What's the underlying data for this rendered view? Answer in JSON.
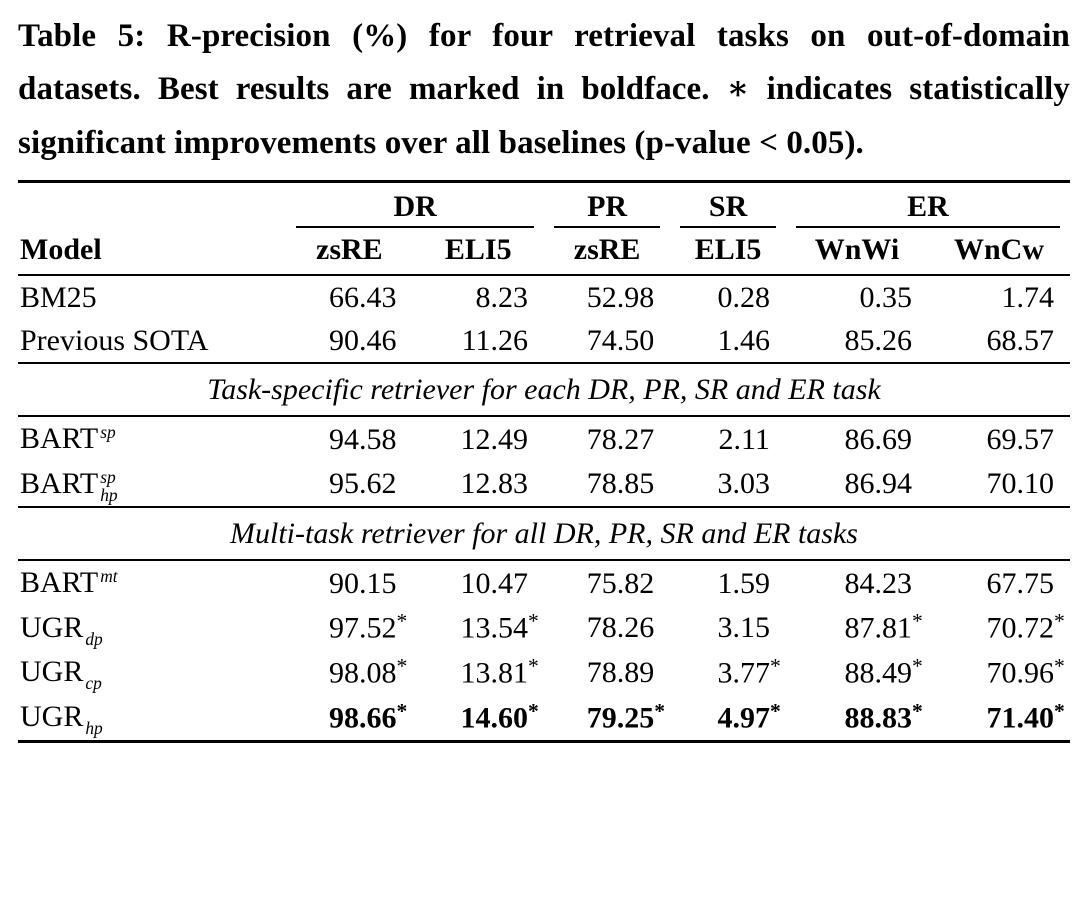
{
  "caption": {
    "label": "Table 5:",
    "text": "R-precision (%) for four retrieval tasks on out-of-domain datasets. Best results are marked in boldface. ∗ indicates statistically significant improvements over all baselines (p-value < 0.05)."
  },
  "table": {
    "star_symbol": "*",
    "model_header": "Model",
    "col_groups": [
      {
        "label": "DR",
        "span": 2
      },
      {
        "label": "PR",
        "span": 1
      },
      {
        "label": "SR",
        "span": 1
      },
      {
        "label": "ER",
        "span": 2
      }
    ],
    "sub_headers": [
      "zsRE",
      "ELI5",
      "zsRE",
      "ELI5",
      "WnWi",
      "WnCw"
    ],
    "sections": [
      {
        "header": null,
        "rows": [
          {
            "model": {
              "base": "BM25"
            },
            "cells": [
              {
                "v": "66.43"
              },
              {
                "v": "8.23"
              },
              {
                "v": "52.98"
              },
              {
                "v": "0.28"
              },
              {
                "v": "0.35"
              },
              {
                "v": "1.74"
              }
            ]
          },
          {
            "model": {
              "base": "Previous SOTA"
            },
            "cells": [
              {
                "v": "90.46"
              },
              {
                "v": "11.26"
              },
              {
                "v": "74.50"
              },
              {
                "v": "1.46"
              },
              {
                "v": "85.26"
              },
              {
                "v": "68.57"
              }
            ]
          }
        ]
      },
      {
        "header": "Task-specific retriever for each DR, PR, SR and ER task",
        "rows": [
          {
            "model": {
              "base": "BART",
              "sup": "sp"
            },
            "cells": [
              {
                "v": "94.58"
              },
              {
                "v": "12.49"
              },
              {
                "v": "78.27"
              },
              {
                "v": "2.11"
              },
              {
                "v": "86.69"
              },
              {
                "v": "69.57"
              }
            ]
          },
          {
            "model": {
              "base": "BART",
              "sup": "sp",
              "sub": "hp"
            },
            "cells": [
              {
                "v": "95.62"
              },
              {
                "v": "12.83"
              },
              {
                "v": "78.85"
              },
              {
                "v": "3.03"
              },
              {
                "v": "86.94"
              },
              {
                "v": "70.10"
              }
            ]
          }
        ]
      },
      {
        "header": "Multi-task retriever for all DR, PR, SR and ER tasks",
        "rows": [
          {
            "model": {
              "base": "BART",
              "sup": "mt"
            },
            "cells": [
              {
                "v": "90.15"
              },
              {
                "v": "10.47"
              },
              {
                "v": "75.82"
              },
              {
                "v": "1.59"
              },
              {
                "v": "84.23"
              },
              {
                "v": "67.75"
              }
            ]
          },
          {
            "model": {
              "base": "UGR",
              "sub": "dp"
            },
            "cells": [
              {
                "v": "97.52",
                "star": true
              },
              {
                "v": "13.54",
                "star": true
              },
              {
                "v": "78.26"
              },
              {
                "v": "3.15"
              },
              {
                "v": "87.81",
                "star": true
              },
              {
                "v": "70.72",
                "star": true
              }
            ]
          },
          {
            "model": {
              "base": "UGR",
              "sub": "cp"
            },
            "cells": [
              {
                "v": "98.08",
                "star": true
              },
              {
                "v": "13.81",
                "star": true
              },
              {
                "v": "78.89"
              },
              {
                "v": "3.77",
                "star": true
              },
              {
                "v": "88.49",
                "star": true
              },
              {
                "v": "70.96",
                "star": true
              }
            ]
          },
          {
            "model": {
              "base": "UGR",
              "sub": "hp"
            },
            "cells": [
              {
                "v": "98.66",
                "star": true,
                "bold": true
              },
              {
                "v": "14.60",
                "star": true,
                "bold": true
              },
              {
                "v": "79.25",
                "star": true,
                "bold": true
              },
              {
                "v": "4.97",
                "star": true,
                "bold": true
              },
              {
                "v": "88.83",
                "star": true,
                "bold": true
              },
              {
                "v": "71.40",
                "star": true,
                "bold": true
              }
            ]
          }
        ]
      }
    ]
  }
}
